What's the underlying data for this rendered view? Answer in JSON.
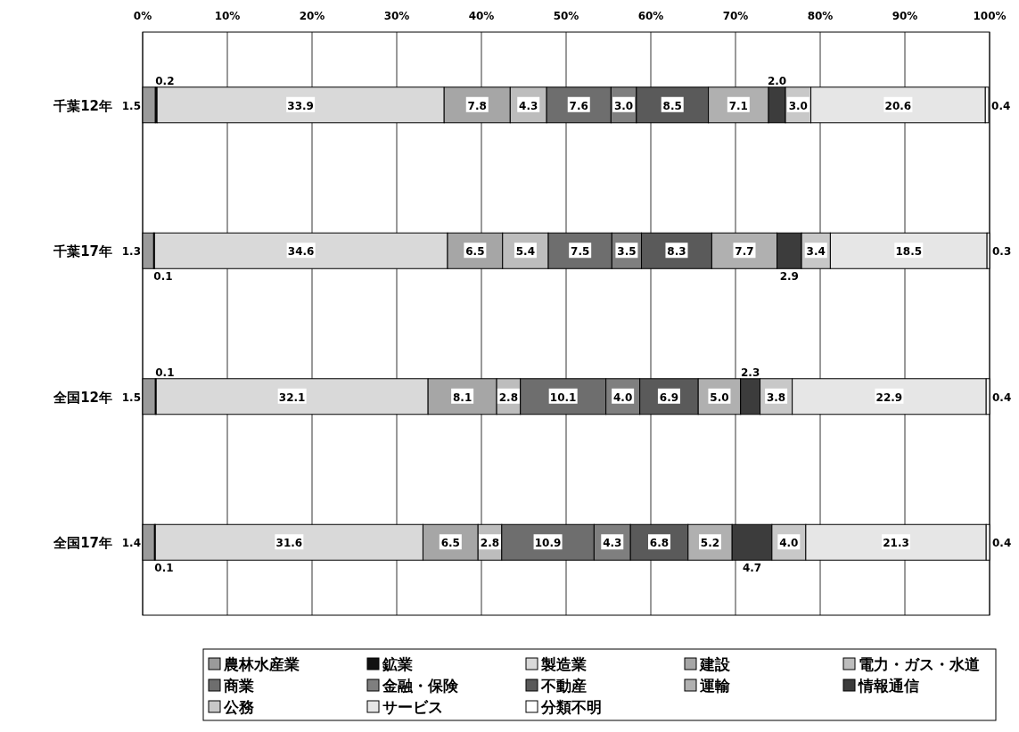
{
  "chart_data": {
    "type": "bar",
    "orientation": "horizontal",
    "stacked": true,
    "grid": "x",
    "legend": "bottom",
    "categories": [
      "千葉12年",
      "千葉17年",
      "全国12年",
      "全国17年"
    ],
    "xlim": [
      0,
      100
    ],
    "xticks": [
      {
        "value": 0,
        "label": "0%"
      },
      {
        "value": 10,
        "label": "10%"
      },
      {
        "value": 20,
        "label": "20%"
      },
      {
        "value": 30,
        "label": "30%"
      },
      {
        "value": 40,
        "label": "40%"
      },
      {
        "value": 50,
        "label": "50%"
      },
      {
        "value": 60,
        "label": "60%"
      },
      {
        "value": 70,
        "label": "70%"
      },
      {
        "value": 80,
        "label": "80%"
      },
      {
        "value": 90,
        "label": "90%"
      },
      {
        "value": 100,
        "label": "100%"
      }
    ],
    "series": [
      {
        "name": "農林水産業",
        "color": "#9a9a9a",
        "values": [
          1.5,
          1.3,
          1.5,
          1.4
        ],
        "value_labels": [
          "1.5",
          "1.3",
          "1.5",
          "1.4"
        ]
      },
      {
        "name": "鉱業",
        "color": "#111111",
        "values": [
          0.2,
          0.1,
          0.1,
          0.1
        ],
        "value_labels": [
          "0.2",
          "0.1",
          "0.1",
          "0.1"
        ]
      },
      {
        "name": "製造業",
        "color": "#d9d9d9",
        "values": [
          33.9,
          34.6,
          32.1,
          31.6
        ],
        "value_labels": [
          "33.9",
          "34.6",
          "32.1",
          "31.6"
        ]
      },
      {
        "name": "建設",
        "color": "#a6a6a6",
        "values": [
          7.8,
          6.5,
          8.1,
          6.5
        ],
        "value_labels": [
          "7.8",
          "6.5",
          "8.1",
          "6.5"
        ]
      },
      {
        "name": "電力・ガス・水道",
        "color": "#bdbdbd",
        "values": [
          4.3,
          5.4,
          2.8,
          2.8
        ],
        "value_labels": [
          "4.3",
          "5.4",
          "2.8",
          "2.8"
        ]
      },
      {
        "name": "商業",
        "color": "#6e6e6e",
        "values": [
          7.6,
          7.5,
          10.1,
          10.9
        ],
        "value_labels": [
          "7.6",
          "7.5",
          "10.1",
          "10.9"
        ]
      },
      {
        "name": "金融・保険",
        "color": "#7f7f7f",
        "values": [
          3.0,
          3.5,
          4.0,
          4.3
        ],
        "value_labels": [
          "3.0",
          "3.5",
          "4.0",
          "4.3"
        ]
      },
      {
        "name": "不動産",
        "color": "#5a5a5a",
        "values": [
          8.5,
          8.3,
          6.9,
          6.8
        ],
        "value_labels": [
          "8.5",
          "8.3",
          "6.9",
          "6.8"
        ]
      },
      {
        "name": "運輸",
        "color": "#b0b0b0",
        "values": [
          7.1,
          7.7,
          5.0,
          5.2
        ],
        "value_labels": [
          "7.1",
          "7.7",
          "5.0",
          "5.2"
        ]
      },
      {
        "name": "情報通信",
        "color": "#3c3c3c",
        "values": [
          2.0,
          2.9,
          2.3,
          4.7
        ],
        "value_labels": [
          "2.0",
          "2.9",
          "2.3",
          "4.7"
        ]
      },
      {
        "name": "公務",
        "color": "#c8c8c8",
        "values": [
          3.0,
          3.4,
          3.8,
          4.0
        ],
        "value_labels": [
          "3.0",
          "3.4",
          "3.8",
          "4.0"
        ]
      },
      {
        "name": "サービス",
        "color": "#e6e6e6",
        "values": [
          20.6,
          18.5,
          22.9,
          21.3
        ],
        "value_labels": [
          "20.6",
          "18.5",
          "22.9",
          "21.3"
        ]
      },
      {
        "name": "分類不明",
        "color": "#ffffff",
        "values": [
          0.4,
          0.3,
          0.4,
          0.4
        ],
        "value_labels": [
          "0.4",
          "0.3",
          "0.4",
          "0.4"
        ]
      }
    ]
  }
}
